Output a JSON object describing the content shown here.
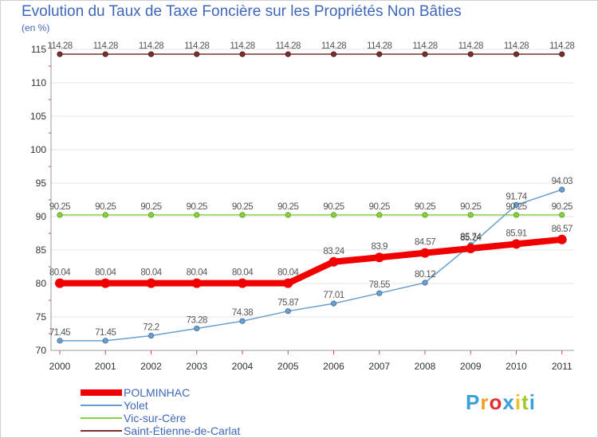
{
  "chart_data": {
    "type": "line",
    "title": "Evolution du Taux de Taxe Foncière sur les Propriétés Non Bâties",
    "ylabel": "(en %)",
    "xlabel": "",
    "x": [
      "2000",
      "2001",
      "2002",
      "2003",
      "2004",
      "2005",
      "2006",
      "2007",
      "2008",
      "2009",
      "2010",
      "2011"
    ],
    "ylim": [
      70,
      115
    ],
    "yticks": [
      70,
      75,
      80,
      85,
      90,
      95,
      100,
      105,
      110,
      115
    ],
    "series": [
      {
        "name": "Saint-Étienne-de-Carlat",
        "color": "#7a3030",
        "values": [
          114.28,
          114.28,
          114.28,
          114.28,
          114.28,
          114.28,
          114.28,
          114.28,
          114.28,
          114.28,
          114.28,
          114.28
        ],
        "labels": [
          "114.28",
          "114.28",
          "114.28",
          "114.28",
          "114.28",
          "114.28",
          "114.28",
          "114.28",
          "114.28",
          "114.28",
          "114.28",
          "114.28"
        ]
      },
      {
        "name": "Vic-sur-Cère",
        "color": "#88d040",
        "values": [
          90.25,
          90.25,
          90.25,
          90.25,
          90.25,
          90.25,
          90.25,
          90.25,
          90.25,
          90.25,
          90.25,
          90.25
        ],
        "labels": [
          "90.25",
          "90.25",
          "90.25",
          "90.25",
          "90.25",
          "90.25",
          "90.25",
          "90.25",
          "90.25",
          "90.25",
          "90.25",
          "90.25"
        ]
      },
      {
        "name": "Yolet",
        "color": "#6a9fd0",
        "values": [
          71.45,
          71.45,
          72.2,
          73.28,
          74.38,
          75.87,
          77.01,
          78.55,
          80.12,
          85.74,
          91.74,
          94.03
        ],
        "labels": [
          "71.45",
          "71.45",
          "72.2",
          "73.28",
          "74.38",
          "75.87",
          "77.01",
          "78.55",
          "80.12",
          "85.74",
          "91.74",
          "94.03"
        ]
      },
      {
        "name": "POLMINHAC",
        "color": "#f00000",
        "values": [
          80.04,
          80.04,
          80.04,
          80.04,
          80.04,
          80.04,
          83.24,
          83.9,
          84.57,
          85.24,
          85.91,
          86.57
        ],
        "labels": [
          "80.04",
          "80.04",
          "80.04",
          "80.04",
          "80.04",
          "80.04",
          "83.24",
          "83.9",
          "84.57",
          "85.24",
          "85.91",
          "86.57"
        ]
      }
    ],
    "legend": [
      {
        "name": "POLMINHAC",
        "color": "#f00000"
      },
      {
        "name": "Yolet",
        "color": "#6a9fd0"
      },
      {
        "name": "Vic-sur-Cère",
        "color": "#88d040"
      },
      {
        "name": "Saint-Étienne-de-Carlat",
        "color": "#7a3030"
      }
    ]
  },
  "logo": {
    "letters": [
      "P",
      "r",
      "o",
      "x",
      "i",
      "t",
      "i"
    ],
    "colors": [
      "#3aa0d8",
      "#f0a020",
      "#e03030",
      "#3aa0d8",
      "#f0c020",
      "#a0c830",
      "#3aa0d8"
    ]
  }
}
